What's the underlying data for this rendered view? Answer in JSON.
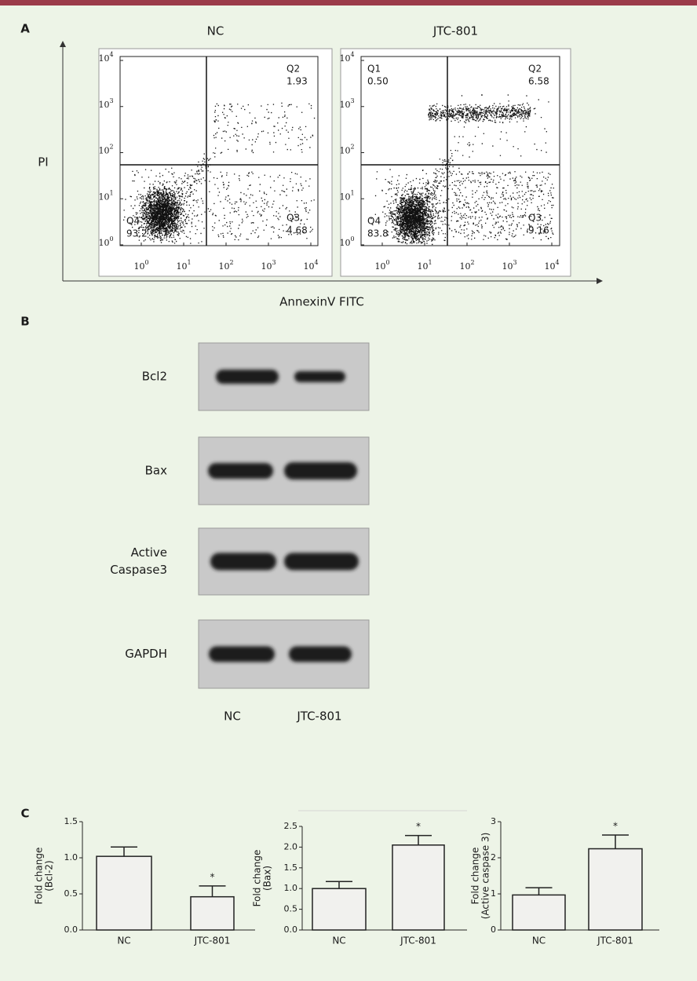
{
  "panel_labels": {
    "a": "A",
    "b": "B",
    "c": "C"
  },
  "flow": {
    "y_label": "PI",
    "x_label": "AnnexinV FITC",
    "tick_base": "10",
    "tick_exponents": [
      0,
      1,
      2,
      3,
      4
    ],
    "plots": [
      {
        "title": "NC",
        "quadrants": [
          {
            "name": "Q2",
            "value": "1.93"
          },
          {
            "name": "Q3",
            "value": "4.68"
          },
          {
            "name": "Q4",
            "value": "93.2"
          }
        ]
      },
      {
        "title": "JTC-801",
        "quadrants": [
          {
            "name": "Q1",
            "value": "0.50"
          },
          {
            "name": "Q2",
            "value": "6.58"
          },
          {
            "name": "Q3",
            "value": "9.16"
          },
          {
            "name": "Q4",
            "value": "83.8"
          }
        ]
      }
    ]
  },
  "western": {
    "rows": [
      [
        "Bcl2"
      ],
      [
        "Bax"
      ],
      [
        "Active",
        "Caspase3"
      ],
      [
        "GAPDH"
      ]
    ],
    "lanes": [
      "NC",
      "JTC-801"
    ]
  },
  "chart_data": [
    {
      "type": "bar",
      "y_label": [
        "Fold change",
        "(Bcl-2)"
      ],
      "categories": [
        "NC",
        "JTC-801"
      ],
      "values": [
        1.02,
        0.46
      ],
      "errors": [
        0.13,
        0.15
      ],
      "significance_labels": [
        null,
        "*"
      ],
      "color": "#f1f1ee",
      "ylim": [
        0,
        1.5
      ],
      "yticks": [
        {
          "value": 0,
          "label": "0.0"
        },
        {
          "value": 0.5,
          "label": "0.5"
        },
        {
          "value": 1,
          "label": "1.0"
        },
        {
          "value": 1.5,
          "label": "1.5"
        }
      ]
    },
    {
      "type": "bar",
      "y_label": [
        "Fold change",
        "(Bax)"
      ],
      "categories": [
        "NC",
        "JTC-801"
      ],
      "values": [
        1.0,
        2.05
      ],
      "errors": [
        0.17,
        0.23
      ],
      "significance_labels": [
        null,
        "*"
      ],
      "color": "#f1f1ee",
      "ylim": [
        0,
        2.5
      ],
      "yticks": [
        {
          "value": 0,
          "label": "0.0"
        },
        {
          "value": 0.5,
          "label": "0.5"
        },
        {
          "value": 1,
          "label": "1.0"
        },
        {
          "value": 1.5,
          "label": "1.5"
        },
        {
          "value": 2,
          "label": "2.0"
        },
        {
          "value": 2.5,
          "label": "2.5"
        }
      ]
    },
    {
      "type": "bar",
      "y_label": [
        "Fold change",
        "(Active caspase 3)"
      ],
      "categories": [
        "NC",
        "JTC-801"
      ],
      "values": [
        0.97,
        2.25
      ],
      "errors": [
        0.2,
        0.38
      ],
      "significance_labels": [
        null,
        "*"
      ],
      "color": "#f1f1ee",
      "ylim": [
        0,
        3
      ],
      "yticks": [
        0,
        1,
        2,
        3
      ]
    }
  ]
}
